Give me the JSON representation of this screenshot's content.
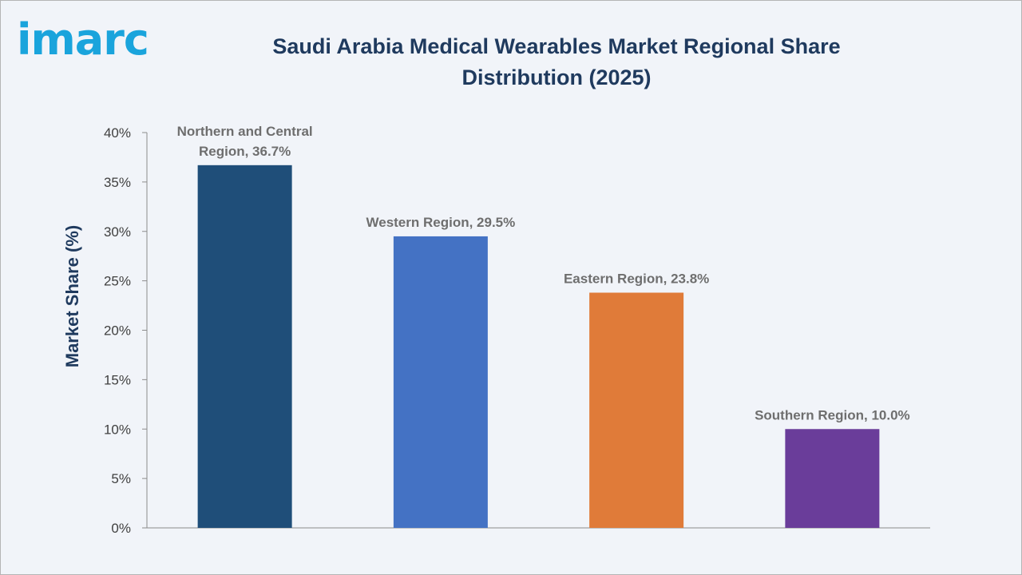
{
  "logo_text": "imarc",
  "chart_data": {
    "type": "bar",
    "title": "Saudi Arabia Medical Wearables Market Regional Share Distribution (2025)",
    "xlabel": "",
    "ylabel": "Market Share (%)",
    "ylim": [
      0,
      40
    ],
    "yticks": [
      0,
      5,
      10,
      15,
      20,
      25,
      30,
      35,
      40
    ],
    "ytick_format": "{v}%",
    "grid": false,
    "categories": [
      "Northern and Central Region",
      "Western Region",
      "Eastern Region",
      "Southern Region"
    ],
    "values": [
      36.7,
      29.5,
      23.8,
      10.0
    ],
    "data_labels": [
      [
        "Northern and Central",
        "Region, 36.7%"
      ],
      [
        "Western Region, 29.5%"
      ],
      [
        "Eastern Region, 23.8%"
      ],
      [
        "Southern Region, 10.0%"
      ]
    ],
    "colors": [
      "#1f4e79",
      "#4472c4",
      "#e07b39",
      "#6a3d9a"
    ]
  }
}
